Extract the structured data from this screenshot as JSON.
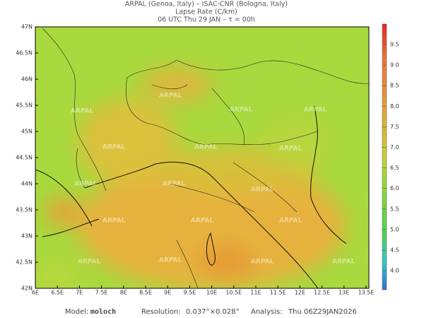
{
  "header": {
    "line1": "ARPAL (Genoa, Italy)  –  ISAC-CNR (Bologna, Italy)",
    "line2": "Lapse Rate (C/km)",
    "line3": "06 UTC Thu 29 JAN  –  τ = 00h"
  },
  "map": {
    "lat_labels": [
      "47N",
      "46.5N",
      "46N",
      "45.5N",
      "45N",
      "44.5N",
      "44N",
      "43.5N",
      "43N",
      "42.5N",
      "42N"
    ],
    "lon_labels": [
      "6E",
      "6.5E",
      "7E",
      "7.5E",
      "8E",
      "8.5E",
      "9E",
      "9.5E",
      "10E",
      "10.5E",
      "11E",
      "11.5E",
      "12E",
      "12.5E",
      "13E",
      "13.5E"
    ],
    "watermark": "ARPAL"
  },
  "colorbar": {
    "labels": [
      "9.5",
      "9.0",
      "8.5",
      "8.0",
      "7.5",
      "7.0",
      "6.5",
      "6.0",
      "5.5",
      "5.0",
      "4.5",
      "4.0"
    ]
  },
  "footer": {
    "model_label": "Model:",
    "model": "moloch",
    "resolution_label": "Resolution:",
    "resolution": "0.037°×0.028°",
    "analysis_label": "Analysis:",
    "analysis": "Thu 06Z29JAN2026"
  }
}
